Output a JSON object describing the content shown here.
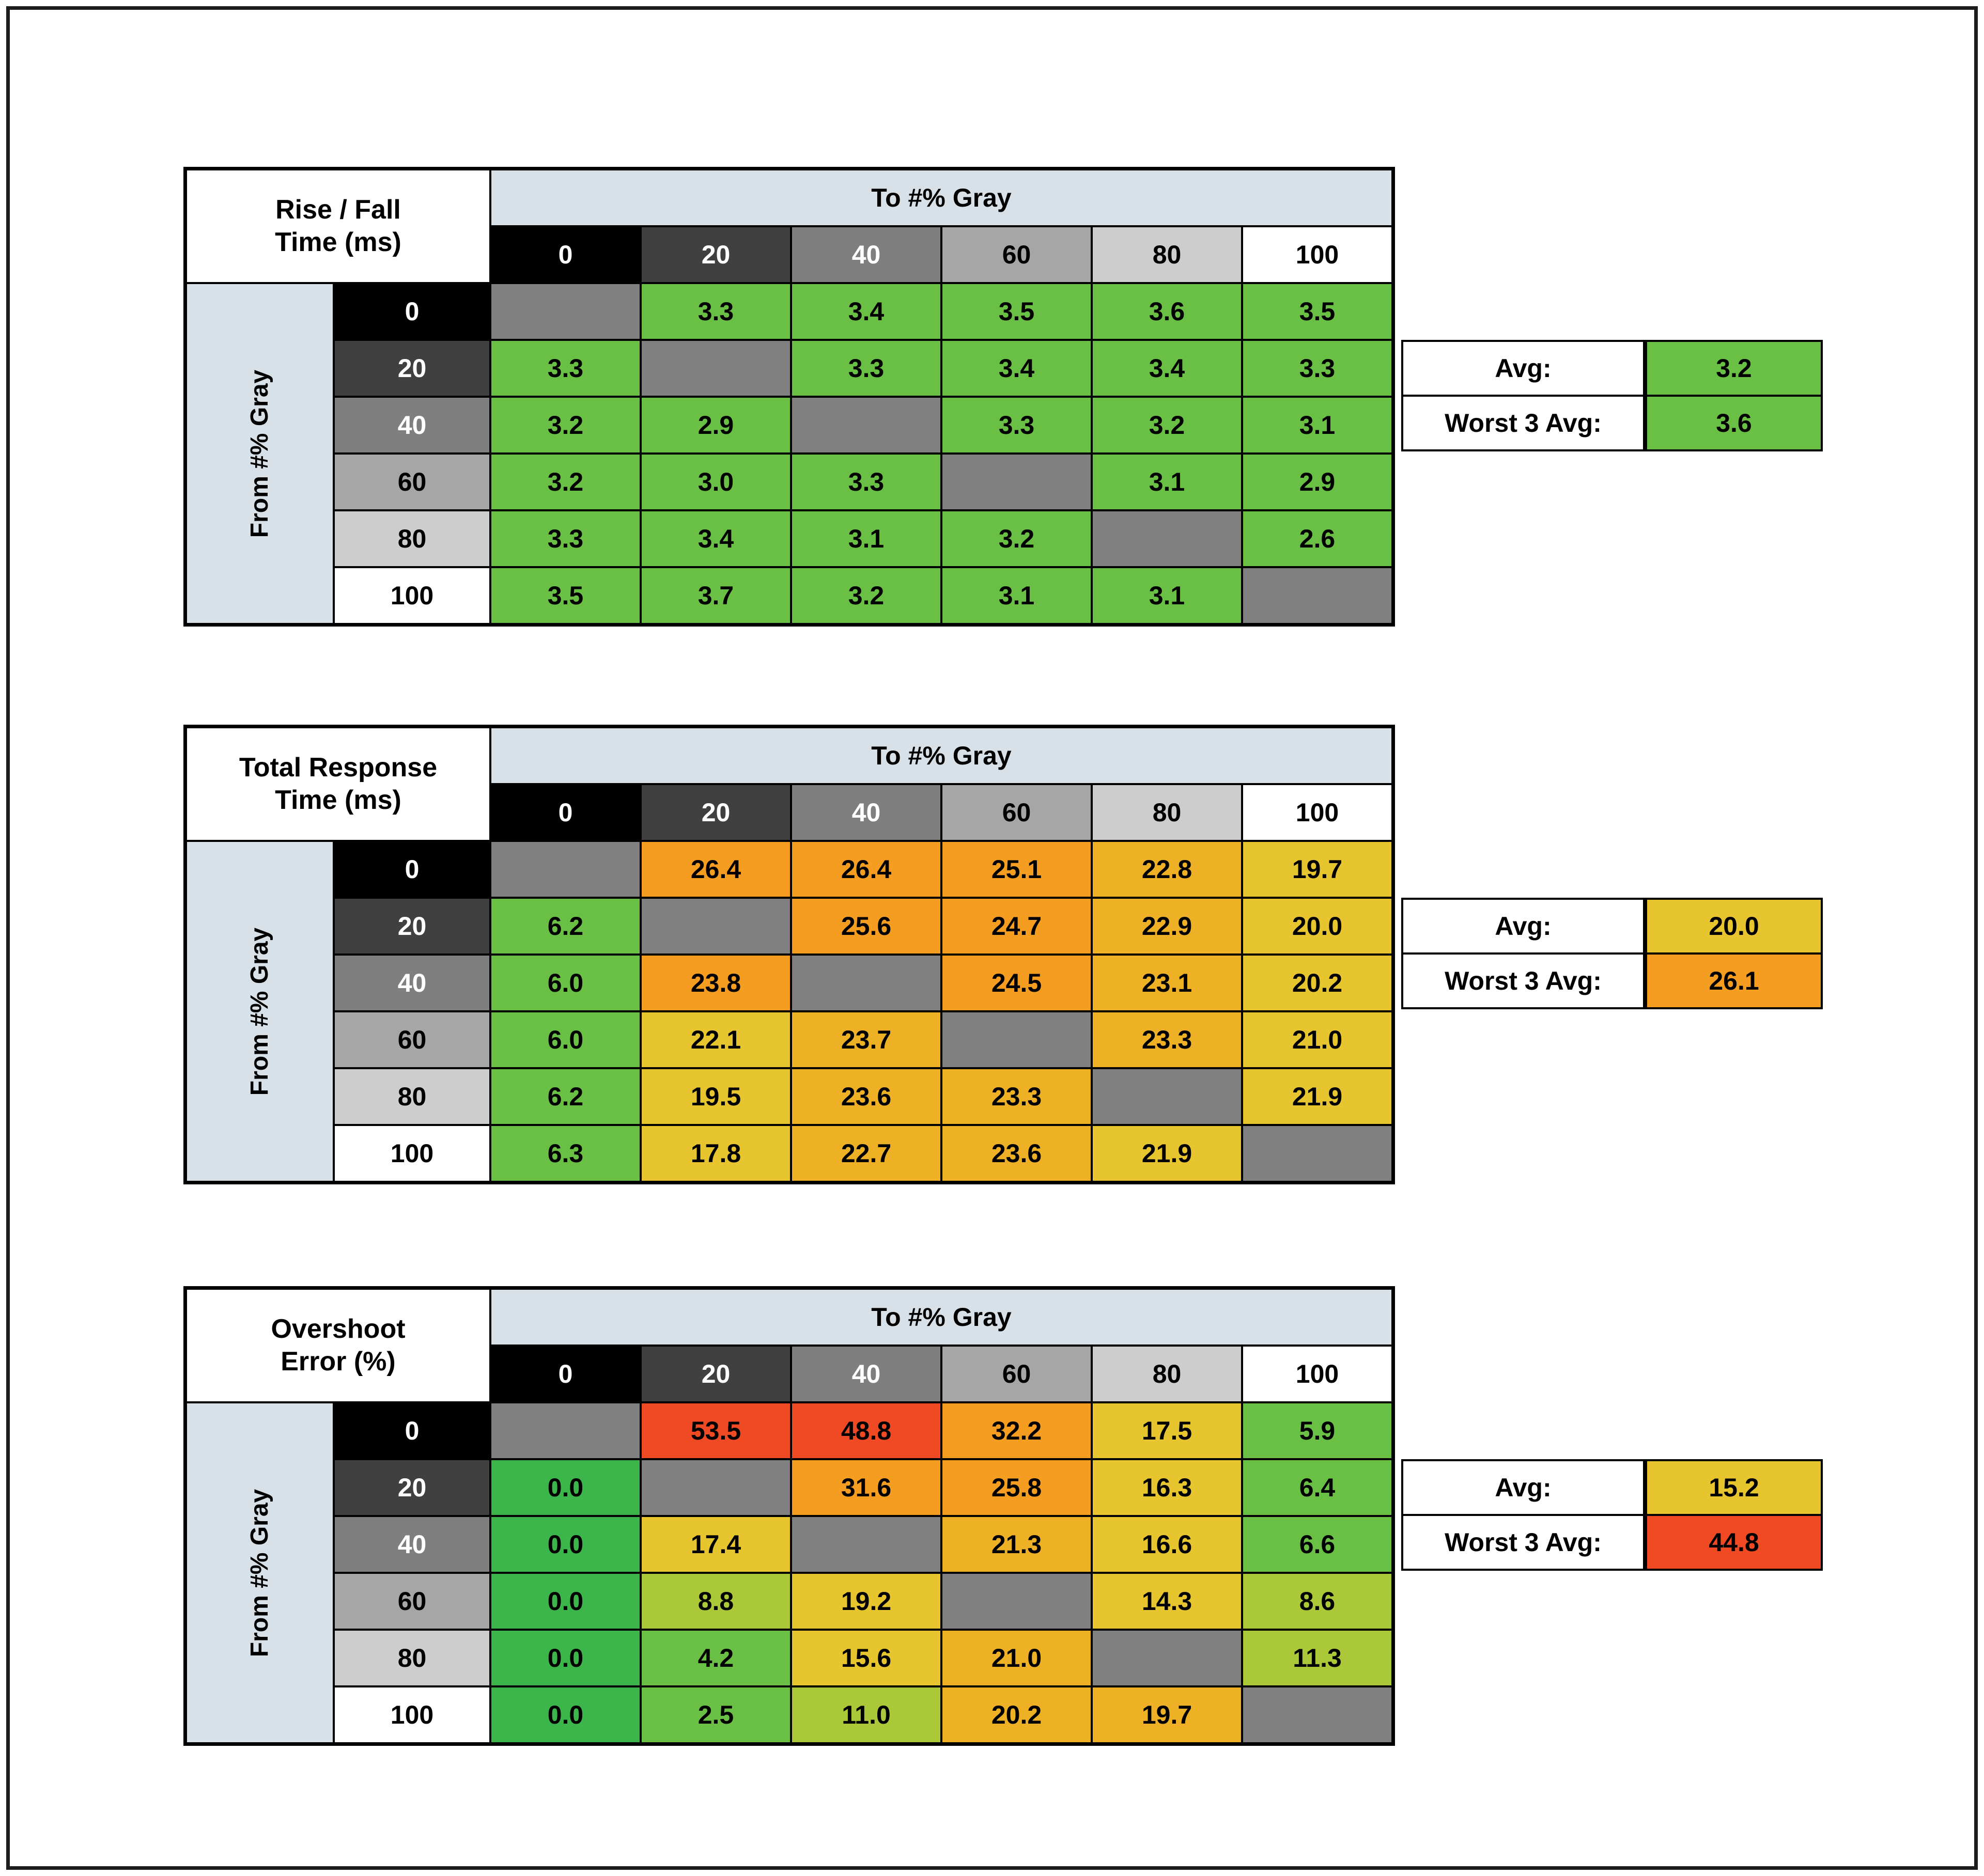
{
  "palette": {
    "header_bg": "#d9e1e8",
    "diag": "#808080",
    "gray_levels": {
      "0": "#000000",
      "20": "#404040",
      "40": "#7f7f7f",
      "60": "#a6a6a6",
      "80": "#cdcdcd",
      "100": "#ffffff"
    },
    "gray_text": {
      "0": "#ffffff",
      "20": "#ffffff",
      "40": "#ffffff",
      "60": "#000000",
      "80": "#000000",
      "100": "#000000"
    },
    "codes": {
      "G": "#6abf45",
      "B": "#3cb54a",
      "YG": "#abc838",
      "Y": "#e6c52e",
      "A": "#eeb125",
      "O": "#f59d20",
      "R": "#ef4a23"
    }
  },
  "chart_data": [
    {
      "type": "heatmap",
      "dom_id": "0",
      "title_line1": "Rise / Fall",
      "title_line2": "Time (ms)",
      "col_axis_label": "To #% Gray",
      "row_axis_label": "From #% Gray",
      "levels": [
        "0",
        "20",
        "40",
        "60",
        "80",
        "100"
      ],
      "values": [
        [
          null,
          "3.3",
          "3.4",
          "3.5",
          "3.6",
          "3.5"
        ],
        [
          "3.3",
          null,
          "3.3",
          "3.4",
          "3.4",
          "3.3"
        ],
        [
          "3.2",
          "2.9",
          null,
          "3.3",
          "3.2",
          "3.1"
        ],
        [
          "3.2",
          "3.0",
          "3.3",
          null,
          "3.1",
          "2.9"
        ],
        [
          "3.3",
          "3.4",
          "3.1",
          "3.2",
          null,
          "2.6"
        ],
        [
          "3.5",
          "3.7",
          "3.2",
          "3.1",
          "3.1",
          null
        ]
      ],
      "colors": [
        [
          null,
          "G",
          "G",
          "G",
          "G",
          "G"
        ],
        [
          "G",
          null,
          "G",
          "G",
          "G",
          "G"
        ],
        [
          "G",
          "G",
          null,
          "G",
          "G",
          "G"
        ],
        [
          "G",
          "G",
          "G",
          null,
          "G",
          "G"
        ],
        [
          "G",
          "G",
          "G",
          "G",
          null,
          "G"
        ],
        [
          "G",
          "G",
          "G",
          "G",
          "G",
          null
        ]
      ],
      "avg_label": "Avg:",
      "avg_value": "3.2",
      "avg_color": "G",
      "worst_label": "Worst 3 Avg:",
      "worst_value": "3.6",
      "worst_color": "G"
    },
    {
      "type": "heatmap",
      "dom_id": "1",
      "title_line1": "Total Response",
      "title_line2": "Time (ms)",
      "col_axis_label": "To #% Gray",
      "row_axis_label": "From #% Gray",
      "levels": [
        "0",
        "20",
        "40",
        "60",
        "80",
        "100"
      ],
      "values": [
        [
          null,
          "26.4",
          "26.4",
          "25.1",
          "22.8",
          "19.7"
        ],
        [
          "6.2",
          null,
          "25.6",
          "24.7",
          "22.9",
          "20.0"
        ],
        [
          "6.0",
          "23.8",
          null,
          "24.5",
          "23.1",
          "20.2"
        ],
        [
          "6.0",
          "22.1",
          "23.7",
          null,
          "23.3",
          "21.0"
        ],
        [
          "6.2",
          "19.5",
          "23.6",
          "23.3",
          null,
          "21.9"
        ],
        [
          "6.3",
          "17.8",
          "22.7",
          "23.6",
          "21.9",
          null
        ]
      ],
      "colors": [
        [
          null,
          "O",
          "O",
          "O",
          "A",
          "Y"
        ],
        [
          "G",
          null,
          "O",
          "O",
          "A",
          "Y"
        ],
        [
          "G",
          "O",
          null,
          "O",
          "A",
          "Y"
        ],
        [
          "G",
          "Y",
          "A",
          null,
          "A",
          "Y"
        ],
        [
          "G",
          "Y",
          "A",
          "A",
          null,
          "Y"
        ],
        [
          "G",
          "Y",
          "A",
          "A",
          "Y",
          null
        ]
      ],
      "avg_label": "Avg:",
      "avg_value": "20.0",
      "avg_color": "Y",
      "worst_label": "Worst 3 Avg:",
      "worst_value": "26.1",
      "worst_color": "O"
    },
    {
      "type": "heatmap",
      "dom_id": "2",
      "title_line1": "Overshoot",
      "title_line2": "Error (%)",
      "col_axis_label": "To #% Gray",
      "row_axis_label": "From #% Gray",
      "levels": [
        "0",
        "20",
        "40",
        "60",
        "80",
        "100"
      ],
      "values": [
        [
          null,
          "53.5",
          "48.8",
          "32.2",
          "17.5",
          "5.9"
        ],
        [
          "0.0",
          null,
          "31.6",
          "25.8",
          "16.3",
          "6.4"
        ],
        [
          "0.0",
          "17.4",
          null,
          "21.3",
          "16.6",
          "6.6"
        ],
        [
          "0.0",
          "8.8",
          "19.2",
          null,
          "14.3",
          "8.6"
        ],
        [
          "0.0",
          "4.2",
          "15.6",
          "21.0",
          null,
          "11.3"
        ],
        [
          "0.0",
          "2.5",
          "11.0",
          "20.2",
          "19.7",
          null
        ]
      ],
      "colors": [
        [
          null,
          "R",
          "R",
          "O",
          "Y",
          "G"
        ],
        [
          "B",
          null,
          "O",
          "O",
          "Y",
          "G"
        ],
        [
          "B",
          "Y",
          null,
          "A",
          "Y",
          "G"
        ],
        [
          "B",
          "YG",
          "Y",
          null,
          "Y",
          "YG"
        ],
        [
          "B",
          "G",
          "Y",
          "A",
          null,
          "YG"
        ],
        [
          "B",
          "G",
          "YG",
          "A",
          "A",
          null
        ]
      ],
      "avg_label": "Avg:",
      "avg_value": "15.2",
      "avg_color": "Y",
      "worst_label": "Worst 3 Avg:",
      "worst_value": "44.8",
      "worst_color": "R"
    }
  ]
}
